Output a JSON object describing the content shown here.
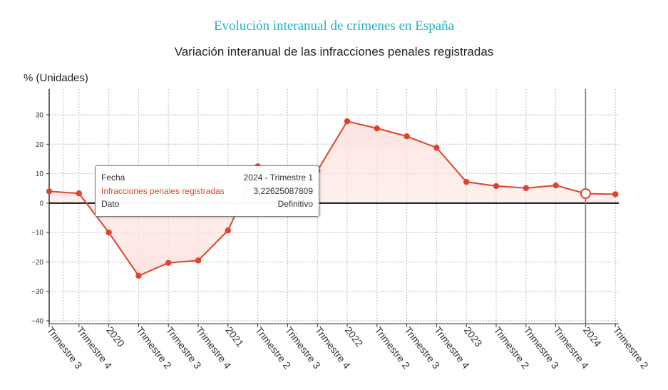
{
  "title": "Evolución interanual de crímenes en España",
  "colors": {
    "title": "#1fb3c2",
    "series": "#e0432c",
    "area": "#fde3df",
    "zero_line": "#111111",
    "grid": "#bbbbbb"
  },
  "chart_data": {
    "type": "line",
    "title": "Variación interanual de las infracciones penales registradas",
    "ylabel": "% (Unidades)",
    "xlabel": "",
    "ylim": [
      -40,
      35
    ],
    "yticks": [
      "30",
      "20",
      "10",
      "0",
      "−10",
      "−20",
      "−30",
      "−40"
    ],
    "grid": true,
    "area_fill": true,
    "categories": [
      "Trimestre 3",
      "Trimestre 4",
      "2020",
      "Trimestre 2",
      "Trimestre 3",
      "Trimestre 4",
      "2021",
      "Trimestre 2",
      "Trimestre 3",
      "Trimestre 4",
      "2022",
      "Trimestre 2",
      "Trimestre 3",
      "Trimestre 4",
      "2023",
      "Trimestre 2",
      "Trimestre 3",
      "Trimestre 4",
      "2024",
      "Trimestre 2"
    ],
    "series": [
      {
        "name": "Infracciones penales registradas",
        "values": [
          4.0,
          3.3,
          -10.0,
          -24.7,
          -20.3,
          -19.5,
          -9.3,
          12.5,
          10.0,
          11.0,
          27.8,
          25.4,
          22.7,
          18.8,
          7.2,
          5.8,
          5.1,
          6.0,
          3.23,
          3.0
        ]
      }
    ],
    "highlight_index": 18,
    "tooltip": {
      "rows": [
        {
          "label": "Fecha",
          "value": "2024 - Trimestre 1"
        },
        {
          "label": "Infracciones penales registradas",
          "value": "3,22625087809"
        },
        {
          "label": "Dato",
          "value": "Definitivo"
        }
      ]
    }
  }
}
